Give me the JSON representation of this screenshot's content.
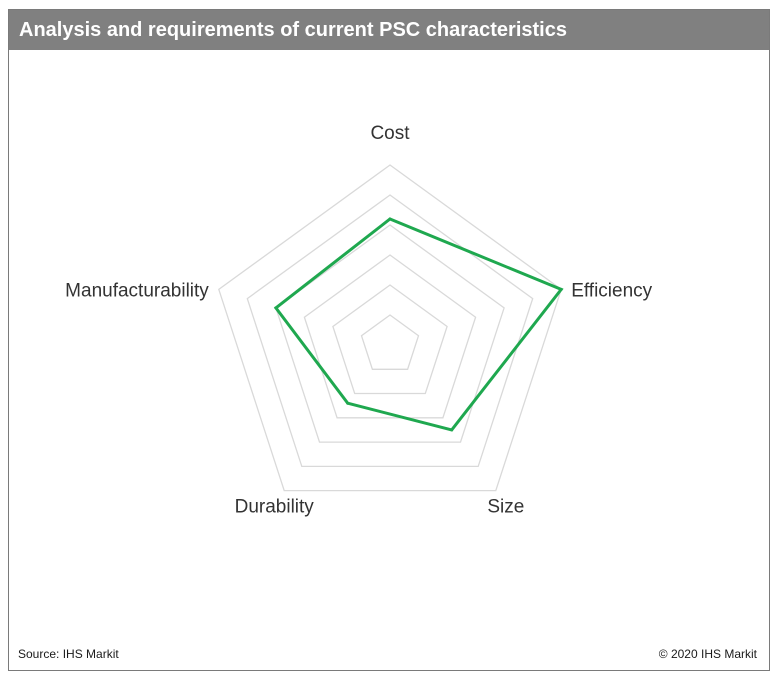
{
  "title": "Analysis and requirements of current PSC characteristics",
  "footer": {
    "source": "Source: IHS Markit",
    "copyright": "© 2020 IHS Markit"
  },
  "colors": {
    "title_bar": "#808080",
    "grid": "#d9d9d9",
    "series": "#1fa84f"
  },
  "chart_data": {
    "type": "radar",
    "categories": [
      "Cost",
      "Efficiency",
      "Size",
      "Durability",
      "Manufacturability"
    ],
    "levels": 6,
    "range": [
      0,
      6
    ],
    "grid": true,
    "legend": "none",
    "series": [
      {
        "name": "",
        "values": [
          4.2,
          6.0,
          3.5,
          2.4,
          4.0
        ]
      }
    ]
  }
}
